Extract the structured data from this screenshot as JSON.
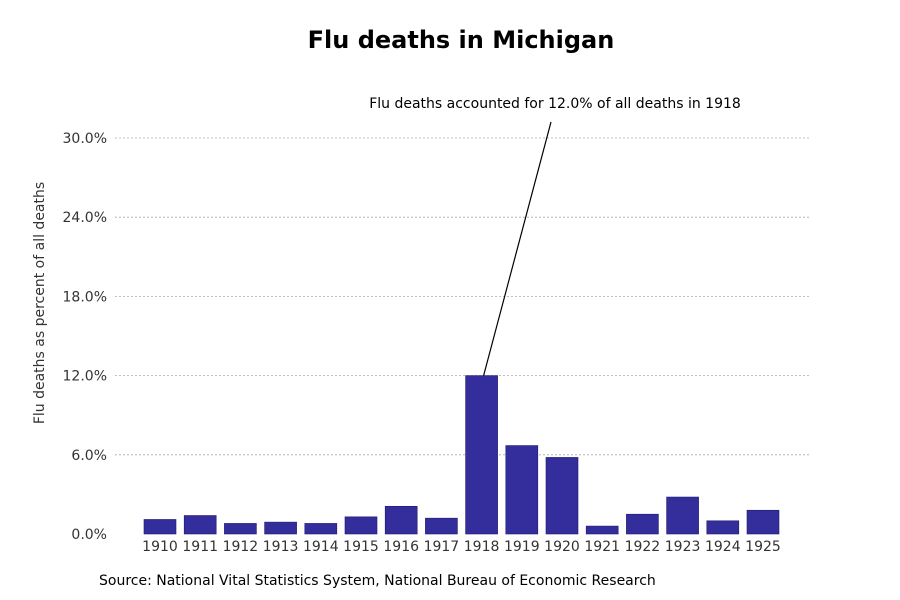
{
  "source": "Source: National Vital Statistics System, National Bureau of Economic Research",
  "colors": {
    "bar": "#332e9c",
    "bar_edge": "#1f1b6e",
    "grid": "#aaaaaa",
    "text": "#333333"
  },
  "chart_data": {
    "type": "bar",
    "title": "Flu deaths in Michigan",
    "xlabel": "",
    "ylabel": "Flu deaths as percent of all deaths",
    "categories": [
      "1910",
      "1911",
      "1912",
      "1913",
      "1914",
      "1915",
      "1916",
      "1917",
      "1918",
      "1919",
      "1920",
      "1921",
      "1922",
      "1923",
      "1924",
      "1925"
    ],
    "values": [
      1.1,
      1.4,
      0.8,
      0.9,
      0.8,
      1.3,
      2.1,
      1.2,
      12.0,
      6.7,
      5.8,
      0.6,
      1.5,
      2.8,
      1.0,
      1.8
    ],
    "ylim": [
      0,
      30
    ],
    "yticks": [
      0,
      6,
      12,
      18,
      24,
      30
    ],
    "ytick_labels": [
      "0.0%",
      "6.0%",
      "12.0%",
      "18.0%",
      "24.0%",
      "30.0%"
    ],
    "grid": "horizontal dashed",
    "legend": "none",
    "annotation": {
      "text": "Flu deaths accounted for 12.0% of all deaths in 1918",
      "target_category": "1918",
      "target_value": 12.0
    }
  }
}
